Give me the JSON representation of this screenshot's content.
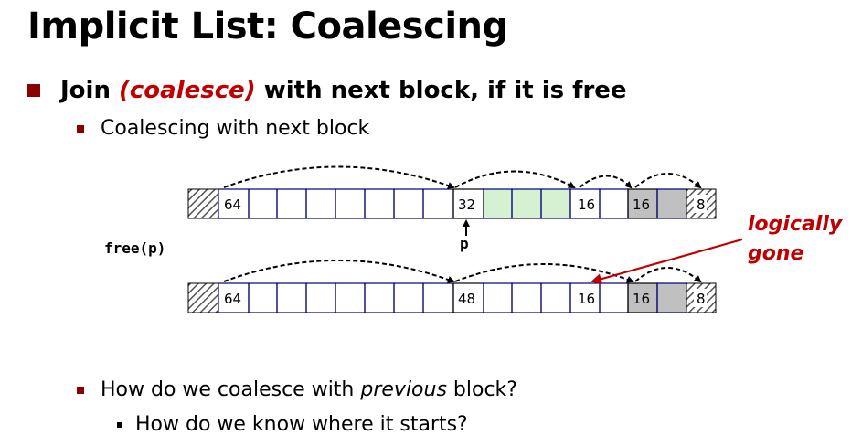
{
  "slide": {
    "title": "Implicit List: Coalescing",
    "bullet1": {
      "prefix": "Join ",
      "emphasis": "(coalesce)",
      "suffix": " with next block, if it is free"
    },
    "sub1": "Coalescing with next block",
    "bullet2": {
      "prefix": "How do we coalesce with ",
      "emphasis": "previous",
      "suffix": " block?"
    },
    "sub2": "How do we know where it starts?"
  },
  "diagram": {
    "call_label": "free(p)",
    "pointer_label": "p",
    "annotation_line1": "logically",
    "annotation_line2": "gone",
    "colors": {
      "free_block": "#d6f0d2",
      "allocated_header": "#c0c0c0",
      "accent": "#c00000",
      "cell_border": "#00007a"
    },
    "heaps": [
      {
        "name": "before",
        "headers": [
          {
            "label": "64",
            "state": "allocated"
          },
          {
            "label": "32",
            "state": "free"
          },
          {
            "label": "16",
            "state": "allocated"
          },
          {
            "label": "16",
            "state": "free-shaded"
          },
          {
            "label": "8",
            "state": "epilogue"
          }
        ]
      },
      {
        "name": "after",
        "headers": [
          {
            "label": "64",
            "state": "allocated"
          },
          {
            "label": "48",
            "state": "free"
          },
          {
            "label": "16",
            "state": "logically-gone"
          },
          {
            "label": "16",
            "state": "free-shaded"
          },
          {
            "label": "8",
            "state": "epilogue"
          }
        ]
      }
    ]
  }
}
